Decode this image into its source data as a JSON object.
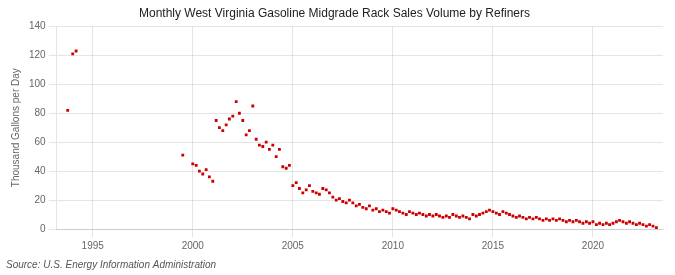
{
  "chart_data": {
    "type": "scatter",
    "title": "Monthly West Virginia Gasoline Midgrade Rack Sales Volume by Refiners",
    "ylabel": "Thousand Gallons per Day",
    "annotations": [
      "Source: U.S. Energy Information Administration"
    ],
    "color": "#cc0000",
    "marker": "square",
    "grid": true,
    "xlim": [
      1993.2,
      2023.5
    ],
    "xticks": [
      1995,
      2000,
      2005,
      2010,
      2015,
      2020
    ],
    "ylim": [
      0,
      140
    ],
    "yticks": [
      0,
      20,
      40,
      60,
      80,
      100,
      120,
      140
    ],
    "x": [
      1993.75,
      1994.0,
      1994.17,
      1999.5,
      2000.0,
      2000.17,
      2000.33,
      2000.5,
      2000.67,
      2000.83,
      2001.0,
      2001.17,
      2001.33,
      2001.5,
      2001.67,
      2001.83,
      2002.0,
      2002.17,
      2002.33,
      2002.5,
      2002.67,
      2002.83,
      2003.0,
      2003.17,
      2003.33,
      2003.5,
      2003.67,
      2003.83,
      2004.0,
      2004.17,
      2004.33,
      2004.5,
      2004.67,
      2004.83,
      2005.0,
      2005.17,
      2005.33,
      2005.5,
      2005.67,
      2005.83,
      2006.0,
      2006.17,
      2006.33,
      2006.5,
      2006.67,
      2006.83,
      2007.0,
      2007.17,
      2007.33,
      2007.5,
      2007.67,
      2007.83,
      2008.0,
      2008.17,
      2008.33,
      2008.5,
      2008.67,
      2008.83,
      2009.0,
      2009.17,
      2009.33,
      2009.5,
      2009.67,
      2009.83,
      2010.0,
      2010.17,
      2010.33,
      2010.5,
      2010.67,
      2010.83,
      2011.0,
      2011.17,
      2011.33,
      2011.5,
      2011.67,
      2011.83,
      2012.0,
      2012.17,
      2012.33,
      2012.5,
      2012.67,
      2012.83,
      2013.0,
      2013.17,
      2013.33,
      2013.5,
      2013.67,
      2013.83,
      2014.0,
      2014.17,
      2014.33,
      2014.5,
      2014.67,
      2014.83,
      2015.0,
      2015.17,
      2015.33,
      2015.5,
      2015.67,
      2015.83,
      2016.0,
      2016.17,
      2016.33,
      2016.5,
      2016.67,
      2016.83,
      2017.0,
      2017.17,
      2017.33,
      2017.5,
      2017.67,
      2017.83,
      2018.0,
      2018.17,
      2018.33,
      2018.5,
      2018.67,
      2018.83,
      2019.0,
      2019.17,
      2019.33,
      2019.5,
      2019.67,
      2019.83,
      2020.0,
      2020.17,
      2020.33,
      2020.5,
      2020.67,
      2020.83,
      2021.0,
      2021.17,
      2021.33,
      2021.5,
      2021.67,
      2021.83,
      2022.0,
      2022.17,
      2022.33,
      2022.5,
      2022.67,
      2022.83,
      2023.0,
      2023.17
    ],
    "values": [
      82,
      121,
      123,
      51,
      45,
      44,
      40,
      38,
      41,
      36,
      33,
      75,
      70,
      68,
      72,
      76,
      78,
      88,
      80,
      75,
      65,
      68,
      85,
      62,
      58,
      57,
      60,
      55,
      58,
      50,
      55,
      43,
      42,
      44,
      30,
      32,
      28,
      25,
      27,
      30,
      26,
      25,
      24,
      28,
      27,
      25,
      22,
      20,
      21,
      19,
      18,
      20,
      18,
      16,
      17,
      15,
      14,
      16,
      13,
      14,
      12,
      13,
      12,
      11,
      14,
      13,
      12,
      11,
      10,
      12,
      11,
      10,
      11,
      10,
      9,
      10,
      9,
      10,
      9,
      8,
      9,
      8,
      10,
      9,
      8,
      9,
      8,
      7,
      10,
      9,
      10,
      11,
      12,
      13,
      12,
      11,
      10,
      12,
      11,
      10,
      9,
      8,
      9,
      8,
      7,
      8,
      7,
      8,
      7,
      6,
      7,
      6,
      7,
      6,
      7,
      6,
      5,
      6,
      5,
      6,
      5,
      4,
      5,
      4,
      5,
      3,
      4,
      3,
      4,
      3,
      4,
      5,
      6,
      5,
      4,
      5,
      4,
      3,
      4,
      3,
      2,
      3,
      2,
      1
    ]
  }
}
